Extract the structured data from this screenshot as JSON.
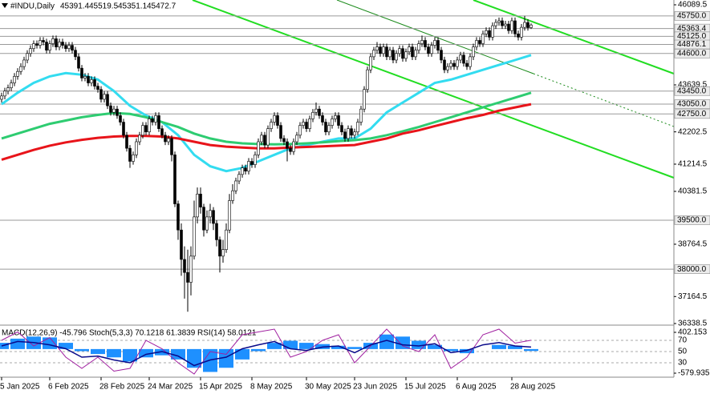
{
  "chart_data": {
    "type": "candlestick",
    "symbol": "#INDU,Daily",
    "xlim": [
      -0.5,
      209.5
    ],
    "ylim": [
      36314,
      46236.5
    ],
    "yticks": [
      46089.5,
      43639.5,
      42202.5,
      41214.5,
      40381.5,
      38764.5,
      37164.5,
      36338.5
    ],
    "levels": [
      {
        "value": 45750,
        "label": "45750.0"
      },
      {
        "value": 45363.4,
        "label": "45363.4"
      },
      {
        "value": 45125,
        "label": "45125.0"
      },
      {
        "value": 44876.1,
        "label": "44876.1"
      },
      {
        "value": 44600,
        "label": "44600.0"
      },
      {
        "value": 43450,
        "label": "43450.0"
      },
      {
        "value": 43050,
        "label": "43050.0"
      },
      {
        "value": 42750,
        "label": "42750.0"
      },
      {
        "value": 39500,
        "label": "39500.0"
      },
      {
        "value": 38000,
        "label": "38000.0"
      }
    ],
    "xticks": [
      {
        "value": 0,
        "label": "5 Jan 2025"
      },
      {
        "value": 15,
        "label": "6 Feb 2025"
      },
      {
        "value": 31,
        "label": "28 Feb 2025"
      },
      {
        "value": 46,
        "label": "24 Mar 2025"
      },
      {
        "value": 62,
        "label": "15 Apr 2025"
      },
      {
        "value": 78,
        "label": "8 May 2025"
      },
      {
        "value": 95,
        "label": "30 May 2025"
      },
      {
        "value": 110,
        "label": "23 Jun 2025"
      },
      {
        "value": 126,
        "label": "15 Jul 2025"
      },
      {
        "value": 142,
        "label": "6 Aug 2025"
      },
      {
        "value": 159,
        "label": "28 Aug 2025"
      }
    ],
    "candles": [
      [
        43200,
        43400,
        43100,
        43300
      ],
      [
        43300,
        43550,
        43200,
        43450
      ],
      [
        43450,
        43650,
        43350,
        43550
      ],
      [
        43550,
        43800,
        43450,
        43700
      ],
      [
        43700,
        44000,
        43600,
        43900
      ],
      [
        43900,
        44150,
        43800,
        44050
      ],
      [
        44050,
        44300,
        43950,
        44200
      ],
      [
        44200,
        44500,
        44100,
        44400
      ],
      [
        44400,
        44700,
        44300,
        44600
      ],
      [
        44600,
        44850,
        44500,
        44750
      ],
      [
        44750,
        45000,
        44650,
        44900
      ],
      [
        44900,
        45000,
        44750,
        44850
      ],
      [
        44850,
        45100,
        44750,
        45000
      ],
      [
        45000,
        45100,
        44850,
        44950
      ],
      [
        44950,
        45050,
        44600,
        44700
      ],
      [
        44700,
        45000,
        44600,
        44900
      ],
      [
        44900,
        45150,
        44800,
        45050
      ],
      [
        45050,
        45150,
        44700,
        44800
      ],
      [
        44800,
        45050,
        44700,
        44950
      ],
      [
        44950,
        45050,
        44750,
        44850
      ],
      [
        44850,
        44950,
        44650,
        44750
      ],
      [
        44750,
        44950,
        44650,
        44850
      ],
      [
        44850,
        44950,
        44600,
        44700
      ],
      [
        44700,
        44800,
        44400,
        44500
      ],
      [
        44500,
        44600,
        44050,
        44150
      ],
      [
        44150,
        44250,
        43750,
        43850
      ],
      [
        43850,
        44000,
        43750,
        43900
      ],
      [
        43900,
        44000,
        43600,
        43700
      ],
      [
        43700,
        43900,
        43600,
        43800
      ],
      [
        43800,
        43900,
        43500,
        43600
      ],
      [
        43600,
        43700,
        43400,
        43500
      ],
      [
        43500,
        43600,
        43100,
        43200
      ],
      [
        43200,
        43450,
        43100,
        43350
      ],
      [
        43350,
        43450,
        42900,
        43000
      ],
      [
        43000,
        43100,
        42700,
        42800
      ],
      [
        42800,
        43000,
        42700,
        42900
      ],
      [
        42900,
        43000,
        42600,
        42700
      ],
      [
        42700,
        42800,
        42400,
        42500
      ],
      [
        42500,
        42600,
        42000,
        42100
      ],
      [
        42100,
        42200,
        41600,
        41700
      ],
      [
        41700,
        41800,
        41100,
        41300
      ],
      [
        41300,
        41600,
        41200,
        41500
      ],
      [
        41500,
        42000,
        41400,
        41900
      ],
      [
        41900,
        42200,
        41800,
        42100
      ],
      [
        42100,
        42500,
        42000,
        42400
      ],
      [
        42400,
        42500,
        42100,
        42200
      ],
      [
        42200,
        42700,
        42100,
        42600
      ],
      [
        42600,
        42700,
        42400,
        42500
      ],
      [
        42500,
        42800,
        42400,
        42700
      ],
      [
        42700,
        42800,
        42200,
        42300
      ],
      [
        42300,
        42400,
        42000,
        42100
      ],
      [
        42100,
        42200,
        41800,
        41900
      ],
      [
        41900,
        42100,
        41800,
        42000
      ],
      [
        42000,
        42100,
        41300,
        41500
      ],
      [
        41500,
        41600,
        39900,
        40000
      ],
      [
        40000,
        40100,
        38900,
        39200
      ],
      [
        39200,
        39400,
        37800,
        38300
      ],
      [
        38300,
        38700,
        37100,
        37900
      ],
      [
        37900,
        38600,
        36700,
        37600
      ],
      [
        37600,
        38700,
        37200,
        38400
      ],
      [
        38400,
        40100,
        38300,
        39600
      ],
      [
        39600,
        40500,
        39400,
        40300
      ],
      [
        40300,
        40500,
        39700,
        39900
      ],
      [
        39900,
        40000,
        39000,
        39200
      ],
      [
        39200,
        39800,
        39100,
        39600
      ],
      [
        39600,
        40000,
        39400,
        39800
      ],
      [
        39800,
        39900,
        39200,
        39400
      ],
      [
        39400,
        39500,
        38700,
        38900
      ],
      [
        38900,
        39000,
        37900,
        38400
      ],
      [
        38400,
        38900,
        38200,
        38600
      ],
      [
        38600,
        39400,
        38500,
        39200
      ],
      [
        39200,
        40300,
        39100,
        40100
      ],
      [
        40100,
        40600,
        40000,
        40400
      ],
      [
        40400,
        40800,
        40300,
        40700
      ],
      [
        40700,
        41000,
        40600,
        40900
      ],
      [
        40900,
        41200,
        40800,
        41100
      ],
      [
        41100,
        41200,
        40900,
        41000
      ],
      [
        41000,
        41400,
        40900,
        41300
      ],
      [
        41300,
        41400,
        41100,
        41200
      ],
      [
        41200,
        41600,
        41100,
        41500
      ],
      [
        41500,
        42000,
        41400,
        41900
      ],
      [
        41900,
        42200,
        41800,
        42100
      ],
      [
        42100,
        42200,
        41700,
        41800
      ],
      [
        41800,
        42400,
        41700,
        42300
      ],
      [
        42300,
        42600,
        42200,
        42500
      ],
      [
        42500,
        42800,
        42400,
        42700
      ],
      [
        42700,
        42800,
        42300,
        42400
      ],
      [
        42400,
        42500,
        41900,
        42000
      ],
      [
        42000,
        42100,
        41800,
        41900
      ],
      [
        41900,
        42000,
        41300,
        41700
      ],
      [
        41700,
        41800,
        41500,
        41600
      ],
      [
        41600,
        42000,
        41500,
        41900
      ],
      [
        41900,
        42200,
        41800,
        42100
      ],
      [
        42100,
        42500,
        42000,
        42400
      ],
      [
        42400,
        42600,
        42300,
        42500
      ],
      [
        42500,
        42600,
        42200,
        42300
      ],
      [
        42300,
        42700,
        42200,
        42600
      ],
      [
        42600,
        42900,
        42500,
        42800
      ],
      [
        42800,
        43100,
        42700,
        42900
      ],
      [
        42900,
        43000,
        42600,
        42700
      ],
      [
        42700,
        42800,
        42400,
        42500
      ],
      [
        42500,
        42600,
        42100,
        42200
      ],
      [
        42200,
        42500,
        42100,
        42400
      ],
      [
        42400,
        42700,
        42300,
        42600
      ],
      [
        42600,
        42800,
        42500,
        42700
      ],
      [
        42700,
        42800,
        42300,
        42400
      ],
      [
        42400,
        42500,
        42100,
        42200
      ],
      [
        42200,
        42300,
        41900,
        42000
      ],
      [
        42000,
        42400,
        41900,
        42300
      ],
      [
        42300,
        42400,
        42000,
        42100
      ],
      [
        42100,
        42300,
        42000,
        42200
      ],
      [
        42200,
        42600,
        42100,
        42500
      ],
      [
        42500,
        43000,
        42400,
        42900
      ],
      [
        42900,
        43600,
        42800,
        43500
      ],
      [
        43500,
        44200,
        43400,
        44100
      ],
      [
        44100,
        44600,
        44000,
        44500
      ],
      [
        44500,
        44800,
        44400,
        44700
      ],
      [
        44700,
        44950,
        44600,
        44800
      ],
      [
        44800,
        44900,
        44500,
        44600
      ],
      [
        44600,
        44900,
        44500,
        44800
      ],
      [
        44800,
        44900,
        44400,
        44500
      ],
      [
        44500,
        44800,
        44400,
        44700
      ],
      [
        44700,
        44800,
        44300,
        44400
      ],
      [
        44400,
        44700,
        44300,
        44600
      ],
      [
        44600,
        44850,
        44500,
        44750
      ],
      [
        44750,
        44850,
        44350,
        44450
      ],
      [
        44450,
        44750,
        44350,
        44650
      ],
      [
        44650,
        44900,
        44550,
        44800
      ],
      [
        44800,
        44900,
        44400,
        44500
      ],
      [
        44500,
        44800,
        44400,
        44700
      ],
      [
        44700,
        45000,
        44600,
        44900
      ],
      [
        44900,
        45150,
        44800,
        45000
      ],
      [
        45000,
        45100,
        44700,
        44800
      ],
      [
        44800,
        44900,
        44500,
        44600
      ],
      [
        44600,
        44950,
        44500,
        44850
      ],
      [
        44850,
        45100,
        44750,
        45000
      ],
      [
        45000,
        45100,
        44600,
        44700
      ],
      [
        44700,
        44800,
        44300,
        44400
      ],
      [
        44400,
        44500,
        44000,
        44100
      ],
      [
        44100,
        44300,
        44000,
        44200
      ],
      [
        44200,
        44400,
        44100,
        44300
      ],
      [
        44300,
        44400,
        44100,
        44200
      ],
      [
        44200,
        44500,
        44100,
        44400
      ],
      [
        44400,
        44650,
        44300,
        44550
      ],
      [
        44550,
        44650,
        44200,
        44300
      ],
      [
        44300,
        44400,
        44100,
        44200
      ],
      [
        44200,
        44600,
        44100,
        44500
      ],
      [
        44500,
        44900,
        44400,
        44800
      ],
      [
        44800,
        45100,
        44700,
        45000
      ],
      [
        45000,
        45100,
        44800,
        44900
      ],
      [
        44900,
        45300,
        44800,
        45200
      ],
      [
        45200,
        45400,
        45100,
        45300
      ],
      [
        45300,
        45400,
        45000,
        45100
      ],
      [
        45100,
        45550,
        45000,
        45450
      ],
      [
        45450,
        45650,
        45350,
        45550
      ],
      [
        45550,
        45700,
        45450,
        45600
      ],
      [
        45600,
        45700,
        45350,
        45450
      ],
      [
        45450,
        45600,
        45350,
        45500
      ],
      [
        45500,
        45600,
        45200,
        45300
      ],
      [
        45300,
        45700,
        45200,
        45600
      ],
      [
        45600,
        45700,
        45100,
        45200
      ],
      [
        45200,
        45300,
        45000,
        45100
      ],
      [
        45100,
        45500,
        45000,
        45400
      ],
      [
        45400,
        45750,
        45300,
        45550
      ],
      [
        45550,
        45650,
        45300,
        45390
      ],
      [
        45391.4,
        45519.5,
        45351.1,
        45472.7
      ]
    ],
    "sample_x": [
      0,
      5,
      10,
      15,
      20,
      25,
      30,
      35,
      40,
      45,
      50,
      55,
      60,
      65,
      70,
      75,
      80,
      85,
      90,
      95,
      100,
      105,
      110,
      115,
      120,
      125,
      130,
      135,
      140,
      145,
      150,
      155,
      160,
      165
    ],
    "series": [
      {
        "color": "#33dcf0",
        "values": [
          43050,
          43400,
          43700,
          43900,
          44000,
          43950,
          43800,
          43450,
          43000,
          42700,
          42500,
          42100,
          41500,
          41150,
          41000,
          41100,
          41300,
          41500,
          41700,
          41800,
          41900,
          42000,
          42000,
          42300,
          42800,
          43100,
          43400,
          43700,
          43800,
          43950,
          44100,
          44250,
          44400,
          44550
        ]
      },
      {
        "color": "#2ecc71",
        "values": [
          42000,
          42150,
          42300,
          42450,
          42550,
          42650,
          42720,
          42780,
          42750,
          42650,
          42500,
          42350,
          42150,
          42000,
          41900,
          41850,
          41830,
          41820,
          41830,
          41850,
          41880,
          41920,
          41950,
          42000,
          42100,
          42220,
          42350,
          42500,
          42650,
          42800,
          42950,
          43100,
          43250,
          43400
        ]
      },
      {
        "color": "#e8141a",
        "values": [
          41350,
          41500,
          41650,
          41780,
          41880,
          41960,
          42020,
          42060,
          42080,
          42080,
          42060,
          42000,
          41900,
          41800,
          41750,
          41720,
          41700,
          41700,
          41720,
          41740,
          41760,
          41780,
          41800,
          41900,
          42000,
          42150,
          42250,
          42380,
          42500,
          42620,
          42720,
          42850,
          42950,
          43050
        ]
      }
    ],
    "indicator": {
      "title": "MACD(12,26,9) -45.796 Stoch(5,3,3) 70.1218 61.3839 RSI(14) 58.0121",
      "ylim": [
        -579.935,
        402.153
      ],
      "yticks": [
        402.153,
        -579.935
      ],
      "osc_lim": [
        0,
        100
      ],
      "osc_ticks": [
        70,
        50,
        30
      ],
      "macd": [
        150,
        250,
        300,
        280,
        150,
        -50,
        -120,
        -200,
        -300,
        -200,
        -150,
        -250,
        -450,
        -550,
        -450,
        -250,
        -50,
        150,
        200,
        150,
        120,
        80,
        50,
        150,
        350,
        300,
        200,
        100,
        -50,
        -100,
        0,
        100,
        80,
        -45.796
      ],
      "rsi": [
        60,
        68,
        66,
        62,
        55,
        40,
        42,
        35,
        30,
        45,
        50,
        42,
        25,
        35,
        40,
        55,
        62,
        68,
        55,
        52,
        58,
        60,
        48,
        62,
        70,
        62,
        60,
        64,
        48,
        52,
        62,
        66,
        60,
        58.0121
      ],
      "stoch": [
        70,
        85,
        60,
        75,
        40,
        20,
        40,
        15,
        20,
        70,
        55,
        30,
        10,
        50,
        45,
        80,
        85,
        90,
        40,
        50,
        70,
        80,
        30,
        60,
        90,
        60,
        50,
        80,
        20,
        40,
        80,
        90,
        65,
        70.1218
      ]
    }
  }
}
